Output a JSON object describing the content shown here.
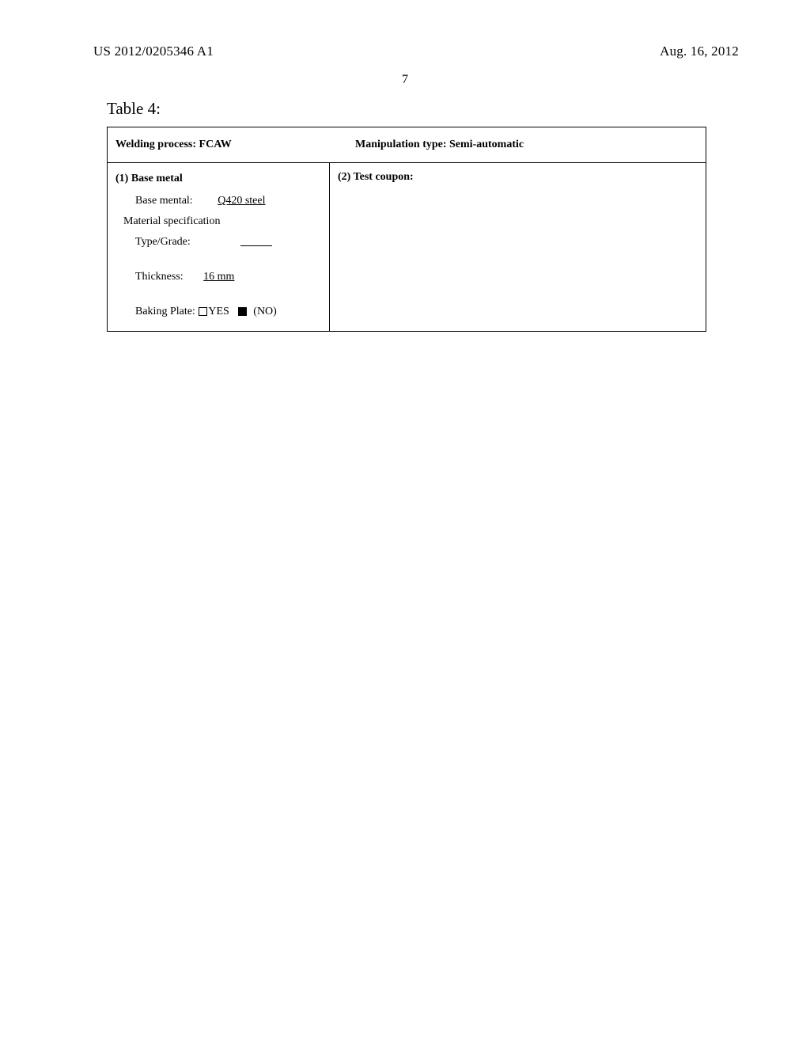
{
  "header": {
    "doc_id": "US 2012/0205346 A1",
    "date": "Aug. 16, 2012",
    "page_num": "7"
  },
  "table": {
    "title": "Table 4:",
    "welding_process_label": "Welding process: FCAW",
    "manipulation_type_label": "Manipulation type: Semi-automatic",
    "section1": {
      "title": "(1) Base metal",
      "base_mental_label": "Base mental:",
      "base_mental_value": "Q420 steel",
      "material_spec_label": "Material specification",
      "type_grade_label": "Type/Grade:",
      "thickness_label": "Thickness:",
      "thickness_value": "16 mm",
      "baking_plate_label": "Baking Plate:",
      "yes_label": "YES",
      "no_label": "(NO)"
    },
    "section2": {
      "title": "(2) Test coupon:"
    }
  }
}
